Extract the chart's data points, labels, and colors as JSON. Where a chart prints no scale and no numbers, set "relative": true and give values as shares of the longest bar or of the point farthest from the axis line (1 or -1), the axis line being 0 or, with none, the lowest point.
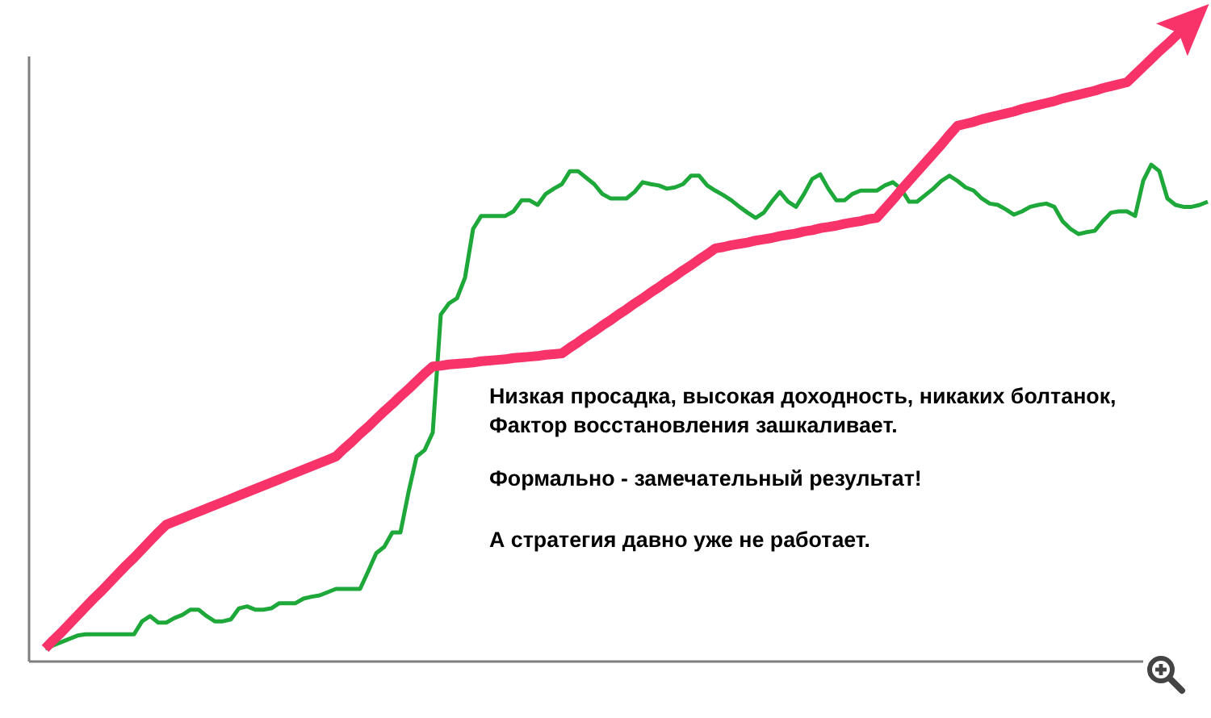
{
  "chart_data": {
    "type": "line",
    "relative": true,
    "categories": [
      null,
      null,
      null,
      null,
      null,
      null,
      null,
      null,
      null,
      null,
      null,
      null,
      null,
      null,
      null,
      null,
      null,
      null,
      null,
      null,
      null,
      null,
      null,
      null,
      null,
      null,
      null,
      null,
      null,
      null,
      null,
      null,
      null,
      null,
      null,
      null,
      null,
      null,
      null,
      null,
      null,
      null,
      null,
      null,
      null,
      null,
      null,
      null,
      null,
      null,
      null,
      null,
      null,
      null,
      null,
      null,
      null,
      null,
      null,
      null,
      null,
      null,
      null,
      null,
      null,
      null,
      null,
      null,
      null,
      null,
      null,
      null,
      null,
      null,
      null,
      null,
      null,
      null,
      null,
      null,
      null,
      null,
      null,
      null,
      null,
      null,
      null,
      null,
      null,
      null,
      null,
      null,
      null,
      null,
      null,
      null,
      null,
      null,
      null,
      null,
      null,
      null,
      null,
      null,
      null,
      null,
      null,
      null,
      null,
      null,
      null,
      null,
      null,
      null,
      null,
      null,
      null,
      null,
      null,
      null,
      null,
      null,
      null,
      null,
      null,
      null,
      null,
      null,
      null,
      null,
      null,
      null,
      null,
      null,
      null,
      null,
      null,
      null,
      null,
      null,
      null,
      null,
      null,
      null,
      null
    ],
    "series": [
      {
        "color": "#1fa83a",
        "values": [
          0.02,
          0.025,
          0.03,
          0.035,
          0.04,
          0.042,
          0.042,
          0.042,
          0.042,
          0.042,
          0.042,
          0.042,
          0.062,
          0.07,
          0.06,
          0.06,
          0.067,
          0.072,
          0.08,
          0.08,
          0.07,
          0.062,
          0.062,
          0.065,
          0.082,
          0.085,
          0.08,
          0.08,
          0.082,
          0.09,
          0.09,
          0.09,
          0.097,
          0.1,
          0.102,
          0.107,
          0.112,
          0.112,
          0.112,
          0.112,
          0.139,
          0.167,
          0.177,
          0.199,
          0.199,
          0.261,
          0.316,
          0.326,
          0.353,
          0.535,
          0.552,
          0.56,
          0.592,
          0.667,
          0.687,
          0.687,
          0.687,
          0.687,
          0.694,
          0.711,
          0.711,
          0.704,
          0.721,
          0.729,
          0.736,
          0.756,
          0.756,
          0.746,
          0.736,
          0.721,
          0.714,
          0.714,
          0.714,
          0.724,
          0.739,
          0.736,
          0.734,
          0.729,
          0.731,
          0.736,
          0.749,
          0.749,
          0.734,
          0.726,
          0.719,
          0.711,
          0.701,
          0.692,
          0.684,
          0.692,
          0.709,
          0.724,
          0.709,
          0.701,
          0.721,
          0.744,
          0.751,
          0.729,
          0.711,
          0.711,
          0.721,
          0.726,
          0.726,
          0.726,
          0.734,
          0.739,
          0.729,
          0.709,
          0.709,
          0.719,
          0.729,
          0.741,
          0.749,
          0.741,
          0.731,
          0.726,
          0.714,
          0.706,
          0.704,
          0.697,
          0.689,
          0.694,
          0.701,
          0.704,
          0.706,
          0.701,
          0.679,
          0.667,
          0.659,
          0.662,
          0.664,
          0.679,
          0.692,
          0.694,
          0.694,
          0.687,
          0.741,
          0.766,
          0.756,
          0.714,
          0.704,
          0.701,
          0.701,
          0.704,
          0.709
        ]
      },
      {
        "color": "#f7336a",
        "values": [
          0.02,
          0.033,
          0.045,
          0.058,
          0.071,
          0.084,
          0.097,
          0.109,
          0.122,
          0.135,
          0.148,
          0.16,
          0.173,
          0.186,
          0.199,
          0.211,
          0.216,
          0.221,
          0.226,
          0.231,
          0.236,
          0.241,
          0.246,
          0.251,
          0.256,
          0.261,
          0.266,
          0.271,
          0.276,
          0.281,
          0.286,
          0.291,
          0.296,
          0.301,
          0.306,
          0.311,
          0.316,
          0.328,
          0.339,
          0.351,
          0.362,
          0.374,
          0.386,
          0.397,
          0.409,
          0.42,
          0.432,
          0.444,
          0.455,
          0.456,
          0.458,
          0.459,
          0.46,
          0.461,
          0.463,
          0.464,
          0.465,
          0.466,
          0.468,
          0.469,
          0.47,
          0.471,
          0.473,
          0.474,
          0.475,
          0.484,
          0.492,
          0.501,
          0.509,
          0.518,
          0.526,
          0.535,
          0.543,
          0.552,
          0.56,
          0.569,
          0.577,
          0.586,
          0.594,
          0.603,
          0.611,
          0.62,
          0.628,
          0.637,
          0.639,
          0.642,
          0.644,
          0.646,
          0.649,
          0.651,
          0.653,
          0.656,
          0.658,
          0.66,
          0.663,
          0.665,
          0.668,
          0.67,
          0.672,
          0.675,
          0.677,
          0.679,
          0.682,
          0.684,
          0.698,
          0.712,
          0.727,
          0.741,
          0.755,
          0.769,
          0.783,
          0.797,
          0.812,
          0.826,
          0.829,
          0.832,
          0.836,
          0.839,
          0.842,
          0.845,
          0.848,
          0.852,
          0.855,
          0.858,
          0.861,
          0.864,
          0.868,
          0.871,
          0.874,
          0.877,
          0.88,
          0.884,
          0.887,
          0.89,
          0.893,
          0.905,
          0.917,
          0.929,
          0.941,
          0.952,
          0.964,
          0.976,
          0.988,
          1.0,
          null
        ]
      }
    ],
    "annotations": [
      "Низкая просадка, высокая доходность, никаких болтанок,",
      "Фактор восстановления зашкаливает.",
      "Формально - замечательный результат!",
      "А стратегия давно уже не работает."
    ]
  }
}
